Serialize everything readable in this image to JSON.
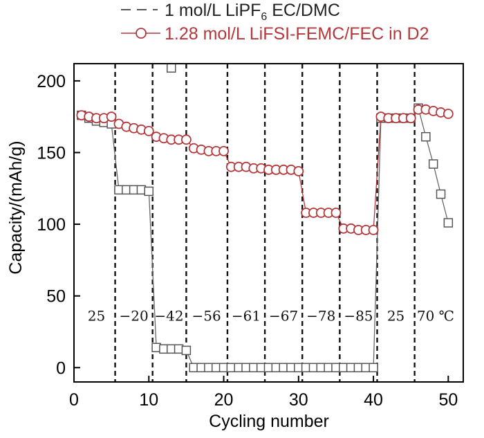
{
  "chart_data": {
    "type": "scatter",
    "title": "",
    "xlabel": "Cycling number",
    "ylabel": "Capacity/(mAh/g)",
    "xlim": [
      0,
      52
    ],
    "ylim": [
      -10,
      212
    ],
    "xticks": [
      0,
      10,
      20,
      30,
      40,
      50
    ],
    "yticks": [
      0,
      50,
      100,
      150,
      200
    ],
    "legend_position": "top",
    "divider_cycles": [
      5.5,
      10.5,
      15,
      20.5,
      25.5,
      30.5,
      35.5,
      40.5,
      45.5
    ],
    "segment_labels": [
      {
        "text": "25",
        "x": 3
      },
      {
        "text": "−20",
        "x": 8
      },
      {
        "text": "−42",
        "x": 12.7
      },
      {
        "text": "−56",
        "x": 17.7
      },
      {
        "text": "−61",
        "x": 23
      },
      {
        "text": "−67",
        "x": 28
      },
      {
        "text": "−78",
        "x": 33
      },
      {
        "text": "−85",
        "x": 38
      },
      {
        "text": "25",
        "x": 43
      },
      {
        "text": "70 ℃",
        "x": 48.3
      }
    ],
    "segment_label_y": 36,
    "series": [
      {
        "name_parts": [
          "1 mol/L LiPF",
          "6",
          " EC/DMC"
        ],
        "marker": "square",
        "color": "#555555",
        "line_color": "#666666",
        "x": [
          1,
          2,
          3,
          4,
          5,
          6,
          7,
          8,
          9,
          10,
          11,
          12,
          13,
          14,
          15,
          16,
          17,
          18,
          19,
          20,
          21,
          22,
          23,
          24,
          25,
          26,
          27,
          28,
          29,
          30,
          31,
          32,
          33,
          34,
          35,
          36,
          37,
          38,
          39,
          40,
          41,
          42,
          43,
          44,
          45,
          46,
          47,
          48,
          49,
          50
        ],
        "values": [
          176,
          174,
          172,
          171,
          170,
          124,
          124,
          124,
          124,
          123,
          14,
          13,
          13,
          13,
          12,
          0,
          0,
          0,
          0,
          0,
          0,
          0,
          0,
          0,
          0,
          0,
          0,
          0,
          0,
          0,
          0,
          0,
          0,
          0,
          0,
          0,
          0,
          0,
          0,
          0,
          174,
          174,
          174,
          174,
          174,
          181,
          161,
          142,
          121,
          101
        ],
        "outliers": [
          {
            "x": 13,
            "y": 209
          }
        ]
      },
      {
        "name": "1.28 mol/L LiFSI-FEMC/FEC in D2",
        "marker": "circle",
        "color": "#b5373a",
        "line_color": "#b5373a",
        "x": [
          1,
          2,
          3,
          4,
          5,
          6,
          7,
          8,
          9,
          10,
          11,
          12,
          13,
          14,
          15,
          16,
          17,
          18,
          19,
          20,
          21,
          22,
          23,
          24,
          25,
          26,
          27,
          28,
          29,
          30,
          31,
          32,
          33,
          34,
          35,
          36,
          37,
          38,
          39,
          40,
          41,
          42,
          43,
          44,
          45,
          46,
          47,
          48,
          49,
          50
        ],
        "values": [
          176,
          175,
          174,
          174,
          175,
          170,
          168,
          167,
          166,
          165,
          161,
          160,
          159,
          159,
          159,
          153,
          152,
          151,
          151,
          151,
          140,
          140,
          140,
          139,
          139,
          138,
          138,
          138,
          138,
          137,
          108,
          108,
          108,
          108,
          108,
          97,
          97,
          96,
          96,
          96,
          175,
          174,
          174,
          174,
          174,
          180,
          180,
          179,
          178,
          177
        ]
      }
    ]
  }
}
